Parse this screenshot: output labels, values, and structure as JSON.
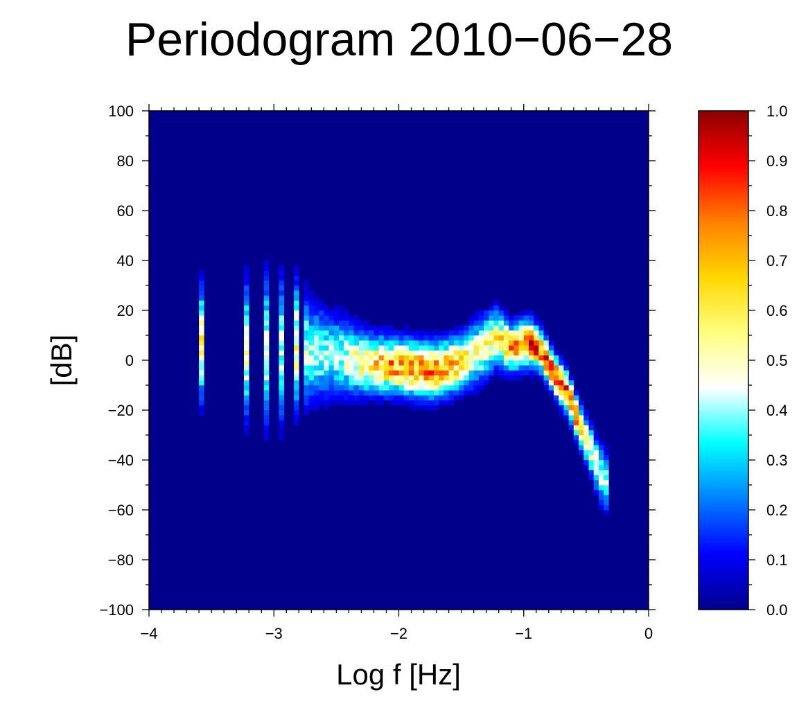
{
  "chart_data": {
    "type": "heatmap",
    "title": "Periodogram 2010−06−28",
    "xlabel": "Log f [Hz]",
    "ylabel": "[dB]",
    "xlim": [
      -4,
      0
    ],
    "ylim": [
      -100,
      100
    ],
    "x_ticks": [
      -4,
      -3,
      -2,
      -1,
      0
    ],
    "x_tick_labels": [
      "−4",
      "−3",
      "−2",
      "−1",
      "0"
    ],
    "y_ticks": [
      100,
      80,
      60,
      40,
      20,
      0,
      -20,
      -40,
      -60,
      -80,
      -100
    ],
    "y_tick_labels": [
      "100",
      "80",
      "60",
      "40",
      "20",
      "0",
      "−20",
      "−40",
      "−60",
      "−80",
      "−100"
    ],
    "colorbar": {
      "range": [
        0,
        1
      ],
      "ticks": [
        1.0,
        0.9,
        0.8,
        0.7,
        0.6,
        0.5,
        0.4,
        0.3,
        0.2,
        0.1,
        0.0
      ],
      "tick_labels": [
        "1.0",
        "0.9",
        "0.8",
        "0.7",
        "0.6",
        "0.5",
        "0.4",
        "0.3",
        "0.2",
        "0.1",
        "0.0"
      ],
      "colors": [
        "#00008b",
        "#0000ff",
        "#0080ff",
        "#00ffff",
        "#ffffff",
        "#ffff80",
        "#ffd700",
        "#ff8000",
        "#ff0000",
        "#8b0000"
      ]
    },
    "background_color": "#00008b",
    "ridge": [
      {
        "x": -3.58,
        "y": 7,
        "y_spread": 14,
        "peak": 0.55
      },
      {
        "x": -3.23,
        "y": 4,
        "y_spread": 16,
        "peak": 0.5
      },
      {
        "x": -3.07,
        "y": 4,
        "y_spread": 18,
        "peak": 0.45
      },
      {
        "x": -2.95,
        "y": 4,
        "y_spread": 18,
        "peak": 0.4
      },
      {
        "x": -2.83,
        "y": 6,
        "y_spread": 16,
        "peak": 0.55
      },
      {
        "x": -2.7,
        "y": 3,
        "y_spread": 12,
        "peak": 0.4
      },
      {
        "x": -2.5,
        "y": 2,
        "y_spread": 10,
        "peak": 0.4
      },
      {
        "x": -2.3,
        "y": -1,
        "y_spread": 8,
        "peak": 0.55
      },
      {
        "x": -2.1,
        "y": -2,
        "y_spread": 7,
        "peak": 0.7
      },
      {
        "x": -1.9,
        "y": -3,
        "y_spread": 7,
        "peak": 0.75
      },
      {
        "x": -1.7,
        "y": -4,
        "y_spread": 7,
        "peak": 0.75
      },
      {
        "x": -1.5,
        "y": -1,
        "y_spread": 7,
        "peak": 0.6
      },
      {
        "x": -1.35,
        "y": 4,
        "y_spread": 8,
        "peak": 0.5
      },
      {
        "x": -1.22,
        "y": 9,
        "y_spread": 7,
        "peak": 0.6
      },
      {
        "x": -1.1,
        "y": 5,
        "y_spread": 6,
        "peak": 0.7
      },
      {
        "x": -0.95,
        "y": 7,
        "y_spread": 6,
        "peak": 0.8
      },
      {
        "x": -0.85,
        "y": 3,
        "y_spread": 5,
        "peak": 0.8
      },
      {
        "x": -0.75,
        "y": -6,
        "y_spread": 5,
        "peak": 0.85
      },
      {
        "x": -0.65,
        "y": -13,
        "y_spread": 5,
        "peak": 0.85
      },
      {
        "x": -0.57,
        "y": -24,
        "y_spread": 5,
        "peak": 0.75
      },
      {
        "x": -0.48,
        "y": -34,
        "y_spread": 6,
        "peak": 0.5
      },
      {
        "x": -0.4,
        "y": -44,
        "y_spread": 7,
        "peak": 0.45
      },
      {
        "x": -0.32,
        "y": -50,
        "y_spread": 7,
        "peak": 0.4
      }
    ],
    "grid": false,
    "legend": "colorbar-right"
  }
}
